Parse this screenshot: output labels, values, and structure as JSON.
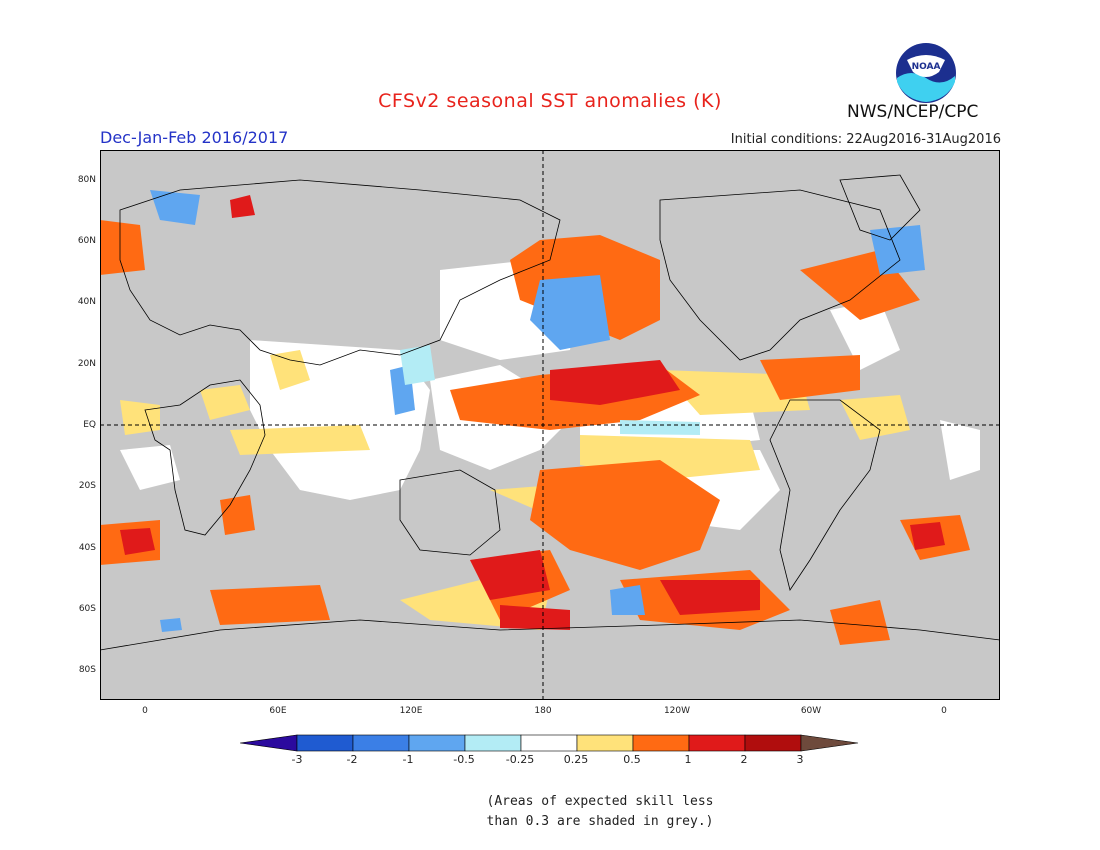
{
  "header": {
    "title": "CFSv2 seasonal SST anomalies (K)",
    "season": "Dec-Jan-Feb 2016/2017",
    "initial_conditions": "Initial conditions: 22Aug2016-31Aug2016",
    "agency": "NWS/NCEP/CPC",
    "logo_text": "NOAA"
  },
  "map": {
    "lat_labels": [
      "80N",
      "60N",
      "40N",
      "20N",
      "EQ",
      "20S",
      "40S",
      "60S",
      "80S"
    ],
    "lon_labels": [
      "0",
      "60E",
      "120E",
      "180",
      "120W",
      "60W",
      "0"
    ],
    "land_color": "#c8c8c8",
    "ocean_neutral_color": "#ffffff"
  },
  "colorbar": {
    "labels": [
      "-3",
      "-2",
      "-1",
      "-0.5",
      "-0.25",
      "0.25",
      "0.5",
      "1",
      "2",
      "3"
    ],
    "colors": [
      "#2b0a9e",
      "#1f5bd1",
      "#3b7fe6",
      "#5fa6f0",
      "#b3ecf5",
      "#ffffff",
      "#ffe27a",
      "#ff6a13",
      "#e01a1a",
      "#b00d0d",
      "#6e4a3c"
    ]
  },
  "skill_note": {
    "line1": "(Areas of expected skill less",
    "line2": "than 0.3 are shaded in grey.)"
  }
}
